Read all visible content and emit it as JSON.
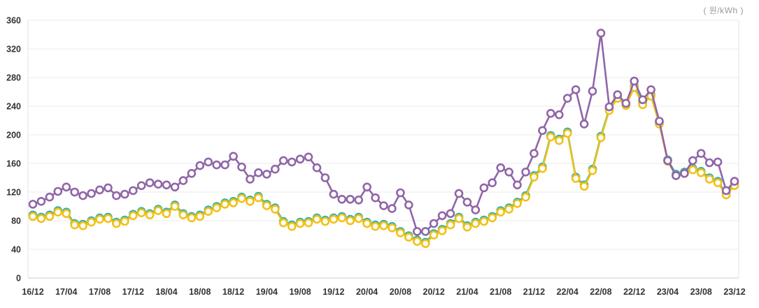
{
  "unit_label": "( 원/kWh )",
  "chart_data": {
    "type": "line",
    "title": "",
    "xlabel": "",
    "ylabel": "",
    "unit": "원/kWh",
    "ylim": [
      0,
      360
    ],
    "y_ticks": [
      0,
      40,
      80,
      120,
      160,
      200,
      240,
      280,
      320,
      360
    ],
    "grid": true,
    "legend_position": "none",
    "x_tick_labels": [
      "16/12",
      "17/04",
      "17/08",
      "17/12",
      "18/04",
      "18/08",
      "18/12",
      "19/04",
      "19/08",
      "19/12",
      "20/04",
      "20/08",
      "20/12",
      "21/04",
      "21/08",
      "21/12",
      "22/04",
      "22/08",
      "22/12",
      "23/04",
      "23/08",
      "23/12"
    ],
    "x_tick_every_n_points": 4,
    "points_per_series": 85,
    "x_is_monthly_from": "2016-12",
    "x_is_monthly_to": "2023-12",
    "series": [
      {
        "name": "series-teal",
        "color": "#35b3ab",
        "values": [
          88,
          85,
          88,
          94,
          92,
          76,
          75,
          80,
          84,
          85,
          78,
          81,
          89,
          93,
          90,
          96,
          92,
          102,
          90,
          86,
          88,
          95,
          100,
          105,
          107,
          113,
          109,
          114,
          103,
          98,
          79,
          74,
          78,
          79,
          84,
          81,
          84,
          86,
          82,
          85,
          78,
          74,
          75,
          72,
          65,
          59,
          53,
          50,
          62,
          68,
          76,
          85,
          73,
          78,
          81,
          86,
          94,
          98,
          106,
          115,
          143,
          155,
          199,
          194,
          204,
          141,
          130,
          152,
          198,
          236,
          253,
          243,
          268,
          244,
          256,
          217,
          165,
          145,
          148,
          153,
          149,
          140,
          135,
          118,
          131
        ]
      },
      {
        "name": "series-yellow",
        "color": "#f1c117",
        "values": [
          86,
          83,
          86,
          92,
          90,
          74,
          73,
          78,
          82,
          83,
          76,
          79,
          87,
          91,
          88,
          94,
          90,
          100,
          88,
          84,
          86,
          93,
          98,
          103,
          105,
          111,
          107,
          112,
          101,
          96,
          77,
          72,
          76,
          77,
          82,
          79,
          82,
          84,
          80,
          83,
          76,
          72,
          73,
          70,
          63,
          57,
          51,
          48,
          60,
          66,
          74,
          83,
          71,
          76,
          79,
          84,
          92,
          96,
          104,
          113,
          141,
          153,
          197,
          192,
          202,
          139,
          128,
          150,
          196,
          234,
          251,
          241,
          266,
          242,
          254,
          215,
          163,
          143,
          146,
          151,
          147,
          138,
          133,
          116,
          129
        ]
      },
      {
        "name": "series-purple",
        "color": "#9065a8",
        "values": [
          103,
          107,
          113,
          121,
          127,
          120,
          115,
          118,
          123,
          126,
          115,
          117,
          122,
          129,
          133,
          131,
          130,
          127,
          136,
          146,
          157,
          162,
          158,
          158,
          170,
          155,
          138,
          147,
          145,
          152,
          164,
          162,
          166,
          169,
          154,
          140,
          117,
          110,
          110,
          109,
          127,
          112,
          101,
          97,
          119,
          102,
          65,
          65,
          76,
          87,
          90,
          118,
          106,
          95,
          126,
          133,
          154,
          148,
          130,
          148,
          174,
          206,
          230,
          228,
          251,
          263,
          215,
          261,
          342,
          239,
          256,
          244,
          275,
          249,
          263,
          219,
          164,
          143,
          146,
          164,
          174,
          161,
          162,
          122,
          135
        ]
      }
    ],
    "style": {
      "grid_color": "#ebebeb",
      "axis_line_color": "#cccccc",
      "plot_border_color": "#e3e3e3",
      "tick_label_color": "#333333",
      "marker_fill": "#ffffff",
      "marker_radius": 5,
      "line_width": 2.6
    }
  }
}
